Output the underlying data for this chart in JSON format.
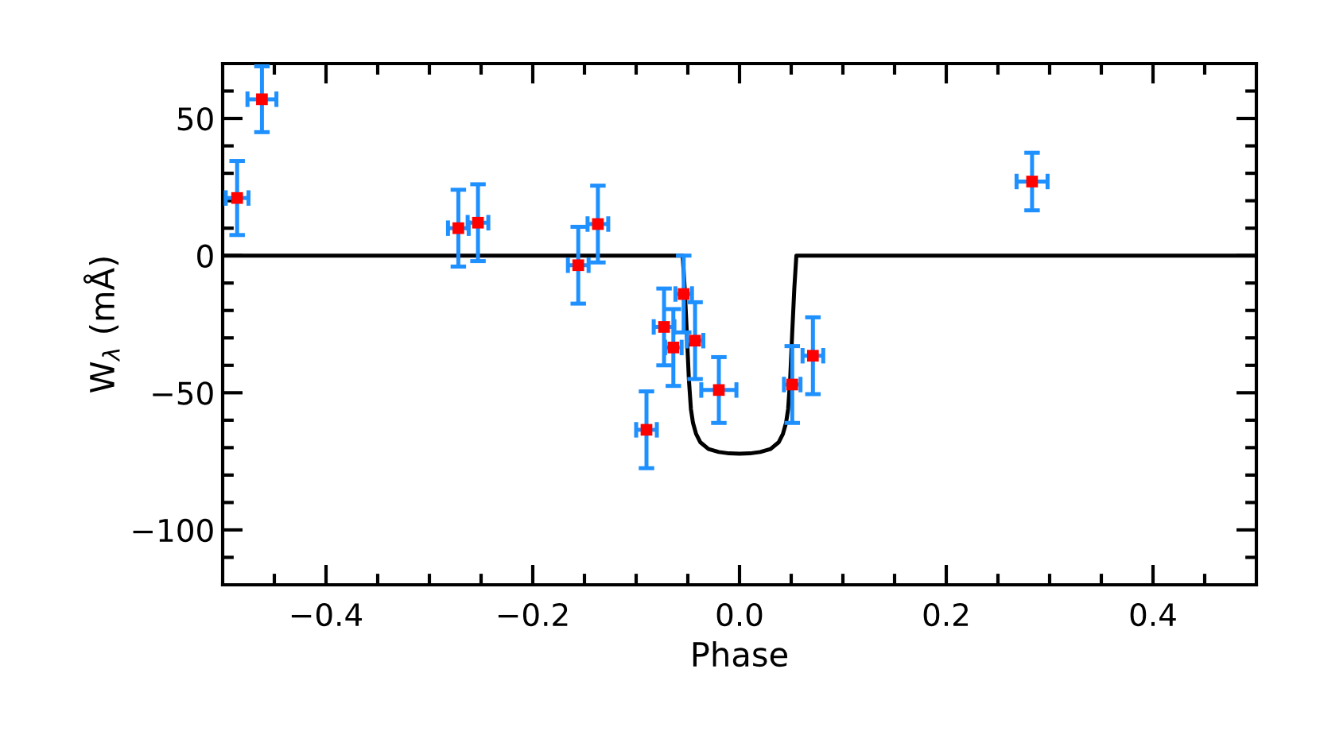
{
  "chart_data": {
    "type": "scatter",
    "xlabel": "Phase",
    "ylabel": "W$_{λ}$ (mÅ)",
    "xlim": [
      -0.5,
      0.5
    ],
    "ylim": [
      -120,
      70
    ],
    "xticks": [
      {
        "value": -0.45,
        "label": null
      },
      -0.4,
      {
        "value": -0.35,
        "label": null
      },
      {
        "value": -0.3,
        "label": null
      },
      {
        "value": -0.25,
        "label": null
      },
      -0.2,
      {
        "value": -0.15,
        "label": null
      },
      {
        "value": -0.1,
        "label": null
      },
      {
        "value": -0.05,
        "label": null
      },
      {
        "value": 0.0,
        "label": "0.0"
      },
      {
        "value": 0.05,
        "label": null
      },
      {
        "value": 0.1,
        "label": null
      },
      {
        "value": 0.15,
        "label": null
      },
      0.2,
      {
        "value": 0.25,
        "label": null
      },
      {
        "value": 0.3,
        "label": null
      },
      {
        "value": 0.35,
        "label": null
      },
      0.4,
      {
        "value": 0.45,
        "label": null
      }
    ],
    "yticks": [
      {
        "value": -110,
        "label": null
      },
      -100,
      {
        "value": -90,
        "label": null
      },
      {
        "value": -80,
        "label": null
      },
      {
        "value": -70,
        "label": null
      },
      {
        "value": -60,
        "label": null
      },
      -50,
      {
        "value": -40,
        "label": null
      },
      {
        "value": -30,
        "label": null
      },
      {
        "value": -20,
        "label": null
      },
      {
        "value": -10,
        "label": null
      },
      0,
      {
        "value": 10,
        "label": null
      },
      {
        "value": 20,
        "label": null
      },
      {
        "value": 30,
        "label": null
      },
      {
        "value": 40,
        "label": null
      },
      50,
      {
        "value": 60,
        "label": null
      }
    ],
    "grid": false,
    "series": [
      {
        "type": "line",
        "color": "#000000",
        "marker": "none",
        "line_style": "solid",
        "x": [
          -0.5,
          -0.055,
          -0.053,
          -0.051,
          -0.049,
          -0.047,
          -0.045,
          -0.042,
          -0.038,
          -0.03,
          -0.02,
          -0.01,
          0.0,
          0.01,
          0.02,
          0.03,
          0.038,
          0.042,
          0.045,
          0.047,
          0.049,
          0.051,
          0.053,
          0.055,
          0.5
        ],
        "values": [
          0,
          0,
          -12,
          -28,
          -45,
          -56,
          -61,
          -65,
          -68,
          -70.5,
          -71.6,
          -72.1,
          -72.2,
          -72.1,
          -71.6,
          -70.5,
          -68,
          -65,
          -61,
          -56,
          -45,
          -28,
          -12,
          0,
          0
        ]
      },
      {
        "color": "#ff0000",
        "marker": "square",
        "x": [
          -0.486,
          -0.462,
          -0.272,
          -0.253,
          -0.156,
          -0.137,
          -0.09,
          -0.073,
          -0.064,
          -0.054,
          -0.043,
          -0.02,
          0.051,
          0.071,
          0.283
        ],
        "values": [
          21,
          57,
          10,
          12,
          -3.5,
          11.5,
          -63.5,
          -26,
          -33.5,
          -14,
          -31,
          -49,
          -47,
          -36.5,
          27
        ],
        "errors": [
          13.5,
          12,
          14,
          14,
          14,
          14,
          14,
          14,
          14,
          14,
          14,
          12,
          14,
          14,
          10.5
        ],
        "xerrors": [
          0.011,
          0.014,
          0.01,
          0.01,
          0.01,
          0.01,
          0.01,
          0.01,
          0.008,
          0.008,
          0.008,
          0.017,
          0.008,
          0.01,
          0.015
        ]
      }
    ]
  }
}
